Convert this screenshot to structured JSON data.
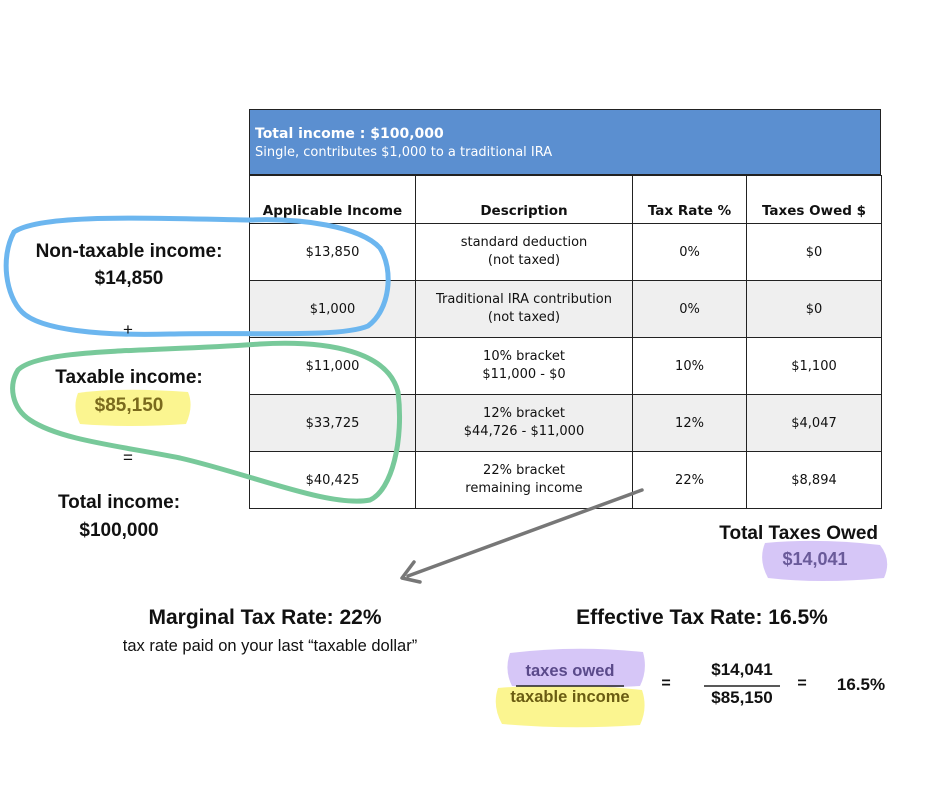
{
  "table": {
    "title": "Total income : $100,000",
    "subtitle": "Single, contributes $1,000 to a traditional IRA",
    "headers": [
      "Applicable Income",
      "Description",
      "Tax Rate %",
      "Taxes Owed $"
    ],
    "rows": [
      {
        "income": "$13,850",
        "desc1": "standard deduction",
        "desc2": "(not taxed)",
        "rate": "0%",
        "owed": "$0"
      },
      {
        "income": "$1,000",
        "desc1": "Traditional IRA contribution",
        "desc2": "(not taxed)",
        "rate": "0%",
        "owed": "$0"
      },
      {
        "income": "$11,000",
        "desc1": "10% bracket",
        "desc2": "$11,000 - $0",
        "rate": "10%",
        "owed": "$1,100"
      },
      {
        "income": "$33,725",
        "desc1": "12% bracket",
        "desc2": "$44,726 - $11,000",
        "rate": "12%",
        "owed": "$4,047"
      },
      {
        "income": "$40,425",
        "desc1": "22% bracket",
        "desc2": "remaining income",
        "rate": "22%",
        "owed": "$8,894"
      }
    ]
  },
  "left": {
    "nontaxable_label": "Non-taxable income:",
    "nontaxable_value": "$14,850",
    "plus": "+",
    "taxable_label": "Taxable income:",
    "taxable_value": "$85,150",
    "equals": "=",
    "total_label": "Total income:",
    "total_value": "$100,000"
  },
  "total_taxes": {
    "label": "Total Taxes Owed",
    "value": "$14,041"
  },
  "marginal": {
    "title": "Marginal Tax Rate: 22%",
    "subtitle": "tax rate paid on your last “taxable dollar”"
  },
  "effective": {
    "title": "Effective Tax Rate: 16.5%",
    "numerator_label": "taxes owed",
    "denominator_label": "taxable income",
    "eq1": "=",
    "numerator_value": "$14,041",
    "denominator_value": "$85,150",
    "eq2": "=",
    "result": "16.5%"
  },
  "colors": {
    "banner": "#5b8fd0",
    "blue_circle": "#6cb6ef",
    "green_circle": "#78c99a",
    "yellow_highlight": "#fbf48a",
    "purple_highlight": "#d4c3f7",
    "arrow": "#777777"
  }
}
